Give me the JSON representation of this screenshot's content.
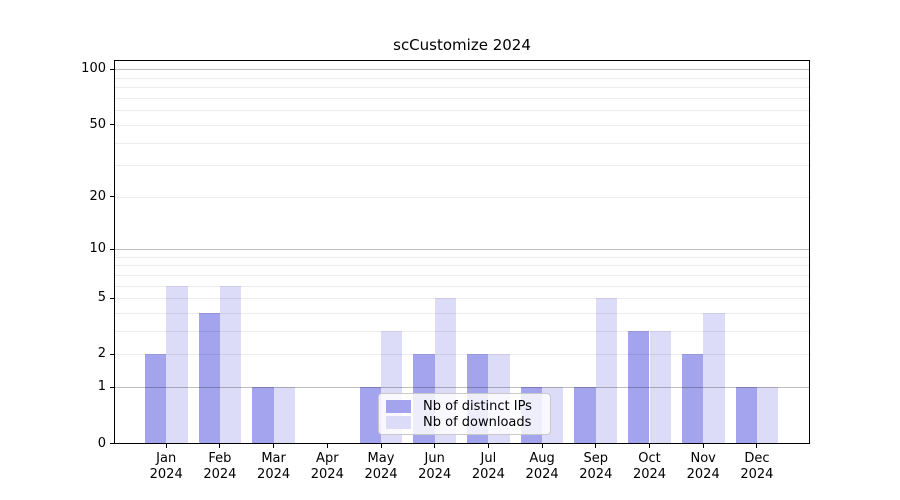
{
  "chart_data": {
    "type": "bar",
    "title": "scCustomize 2024",
    "categories": [
      "Jan",
      "Feb",
      "Mar",
      "Apr",
      "May",
      "Jun",
      "Jul",
      "Aug",
      "Sep",
      "Oct",
      "Nov",
      "Dec"
    ],
    "year_label": "2024",
    "series": [
      {
        "key": "distinct-ips",
        "name": "Nb of distinct IPs",
        "color": "#A4A4EE",
        "values": [
          2,
          4,
          1,
          0,
          1,
          2,
          2,
          1,
          1,
          3,
          2,
          1
        ]
      },
      {
        "key": "downloads",
        "name": "Nb of downloads",
        "color": "#DCDCF8",
        "values": [
          6,
          6,
          1,
          0,
          3,
          5,
          2,
          1,
          5,
          3,
          4,
          1
        ]
      }
    ],
    "y_axis": {
      "scale": "log1p",
      "ticks": [
        0,
        1,
        2,
        5,
        10,
        20,
        50,
        100
      ],
      "major_gridlines": [
        1,
        10,
        100
      ],
      "minor_gridlines": [
        2,
        3,
        4,
        5,
        6,
        7,
        8,
        9,
        20,
        30,
        40,
        50,
        60,
        70,
        80,
        90
      ],
      "ylim": [
        0,
        112
      ]
    },
    "x_axis": {
      "label_lines": 2
    },
    "legend": {
      "position": "lower-center",
      "entries": [
        "Nb of distinct IPs",
        "Nb of downloads"
      ]
    },
    "grid": "on",
    "background_color": "#ffffff"
  }
}
